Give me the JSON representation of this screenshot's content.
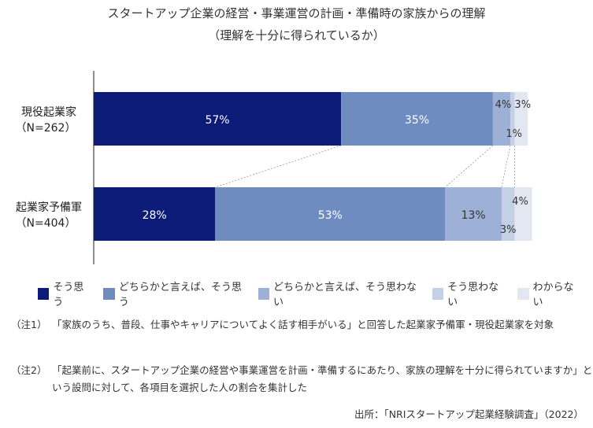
{
  "title": "スタートアップ企業の経営・事業運営の計画・準備時の家族からの理解",
  "subtitle": "（理解を十分に得られているか）",
  "chart_data": {
    "type": "bar",
    "orientation": "horizontal-stacked-100",
    "categories": [
      {
        "name": "現役起業家",
        "n": "（N=262）"
      },
      {
        "name": "起業家予備軍",
        "n": "（N=404）"
      }
    ],
    "series": [
      {
        "name": "そう思う",
        "color": "#0c1a78",
        "values": [
          57,
          28
        ],
        "labels": [
          "57%",
          "28%"
        ]
      },
      {
        "name": "どちらかと言えば、そう思う",
        "color": "#6e8cc0",
        "values": [
          35,
          53
        ],
        "labels": [
          "35%",
          "53%"
        ]
      },
      {
        "name": "どちらかと言えば、そう思わない",
        "color": "#9db0d5",
        "values": [
          4,
          13
        ],
        "labels": [
          "4%",
          "13%"
        ]
      },
      {
        "name": "そう思わない",
        "color": "#c4d0e6",
        "values": [
          1,
          3
        ],
        "labels": [
          "1%",
          "3%"
        ]
      },
      {
        "name": "わからない",
        "color": "#e2e7f1",
        "values": [
          3,
          4
        ],
        "labels": [
          "3%",
          "4%"
        ]
      }
    ],
    "xlim": [
      0,
      100
    ],
    "legend": "bottom"
  },
  "notes": [
    {
      "label": "（注1）",
      "text": "「家族のうち、普段、仕事やキャリアについてよく話す相手がいる」と回答した起業家予備軍・現役起業家を対象"
    },
    {
      "label": "（注2）",
      "text": "「起業前に、スタートアップ企業の経営や事業運営を計画・準備するにあたり、家族の理解を十分に得られていますか」という設問に対して、各項目を選択した人の割合を集計した"
    }
  ],
  "source": "出所：「NRIスタートアップ起業経験調査」（2022）"
}
